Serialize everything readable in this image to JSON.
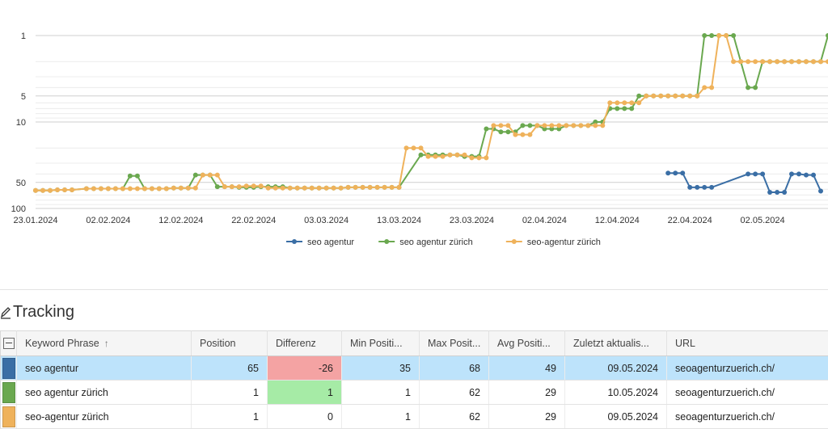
{
  "chart_data": {
    "type": "line",
    "y_axis": {
      "scale": "log",
      "reversed": true,
      "ticks": [
        1,
        5,
        10,
        50,
        100
      ],
      "range": [
        1,
        100
      ]
    },
    "x_axis": {
      "range": [
        "23.01.2024",
        "11.05.2024"
      ],
      "tick_labels": [
        "23.01.2024",
        "02.02.2024",
        "12.02.2024",
        "22.02.2024",
        "03.03.2024",
        "13.03.2024",
        "23.03.2024",
        "02.04.2024",
        "12.04.2024",
        "22.04.2024",
        "02.05.2024"
      ]
    },
    "grid": true,
    "legend_position": "bottom",
    "series": [
      {
        "name": "seo agentur",
        "color": "#3a6ea5",
        "points": [
          [
            "19.04.2024",
            39
          ],
          [
            "20.04.2024",
            39
          ],
          [
            "21.04.2024",
            39
          ],
          [
            "22.04.2024",
            57
          ],
          [
            "23.04.2024",
            57
          ],
          [
            "24.04.2024",
            57
          ],
          [
            "25.04.2024",
            57
          ],
          [
            "30.04.2024",
            40
          ],
          [
            "01.05.2024",
            40
          ],
          [
            "02.05.2024",
            40
          ],
          [
            "03.05.2024",
            65
          ],
          [
            "04.05.2024",
            65
          ],
          [
            "05.05.2024",
            65
          ],
          [
            "06.05.2024",
            40
          ],
          [
            "07.05.2024",
            40
          ],
          [
            "08.05.2024",
            41
          ],
          [
            "09.05.2024",
            41
          ],
          [
            "10.05.2024",
            63
          ]
        ]
      },
      {
        "name": "seo agentur zürich",
        "color": "#6aa84f",
        "points": [
          [
            "23.01.2024",
            62
          ],
          [
            "24.01.2024",
            62
          ],
          [
            "25.01.2024",
            62
          ],
          [
            "26.01.2024",
            61
          ],
          [
            "27.01.2024",
            61
          ],
          [
            "28.01.2024",
            61
          ],
          [
            "30.01.2024",
            59
          ],
          [
            "31.01.2024",
            59
          ],
          [
            "01.02.2024",
            59
          ],
          [
            "02.02.2024",
            59
          ],
          [
            "03.02.2024",
            59
          ],
          [
            "04.02.2024",
            59
          ],
          [
            "05.02.2024",
            42
          ],
          [
            "06.02.2024",
            42
          ],
          [
            "07.02.2024",
            59
          ],
          [
            "08.02.2024",
            59
          ],
          [
            "09.02.2024",
            59
          ],
          [
            "10.02.2024",
            59
          ],
          [
            "11.02.2024",
            58
          ],
          [
            "12.02.2024",
            58
          ],
          [
            "13.02.2024",
            58
          ],
          [
            "14.02.2024",
            41
          ],
          [
            "15.02.2024",
            41
          ],
          [
            "16.02.2024",
            41
          ],
          [
            "17.02.2024",
            56
          ],
          [
            "18.02.2024",
            56
          ],
          [
            "19.02.2024",
            56
          ],
          [
            "20.02.2024",
            57
          ],
          [
            "21.02.2024",
            57
          ],
          [
            "22.02.2024",
            57
          ],
          [
            "23.02.2024",
            56
          ],
          [
            "24.02.2024",
            56
          ],
          [
            "25.02.2024",
            56
          ],
          [
            "26.02.2024",
            56
          ],
          [
            "27.02.2024",
            58
          ],
          [
            "28.02.2024",
            58
          ],
          [
            "29.02.2024",
            58
          ],
          [
            "01.03.2024",
            58
          ],
          [
            "02.03.2024",
            58
          ],
          [
            "03.03.2024",
            58
          ],
          [
            "04.03.2024",
            58
          ],
          [
            "05.03.2024",
            58
          ],
          [
            "06.03.2024",
            57
          ],
          [
            "07.03.2024",
            57
          ],
          [
            "08.03.2024",
            57
          ],
          [
            "09.03.2024",
            57
          ],
          [
            "10.03.2024",
            57
          ],
          [
            "11.03.2024",
            57
          ],
          [
            "12.03.2024",
            57
          ],
          [
            "13.03.2024",
            57
          ],
          [
            "16.03.2024",
            24
          ],
          [
            "17.03.2024",
            24
          ],
          [
            "18.03.2024",
            24
          ],
          [
            "19.03.2024",
            24
          ],
          [
            "20.03.2024",
            24
          ],
          [
            "21.03.2024",
            24
          ],
          [
            "22.03.2024",
            25
          ],
          [
            "23.03.2024",
            25
          ],
          [
            "24.03.2024",
            25
          ],
          [
            "25.03.2024",
            12
          ],
          [
            "26.03.2024",
            12
          ],
          [
            "27.03.2024",
            13
          ],
          [
            "28.03.2024",
            13
          ],
          [
            "29.03.2024",
            13
          ],
          [
            "30.03.2024",
            11
          ],
          [
            "31.03.2024",
            11
          ],
          [
            "01.04.2024",
            11
          ],
          [
            "02.04.2024",
            12
          ],
          [
            "03.04.2024",
            12
          ],
          [
            "04.04.2024",
            12
          ],
          [
            "05.04.2024",
            11
          ],
          [
            "06.04.2024",
            11
          ],
          [
            "07.04.2024",
            11
          ],
          [
            "08.04.2024",
            11
          ],
          [
            "09.04.2024",
            10
          ],
          [
            "10.04.2024",
            10
          ],
          [
            "11.04.2024",
            7
          ],
          [
            "12.04.2024",
            7
          ],
          [
            "13.04.2024",
            7
          ],
          [
            "14.04.2024",
            7
          ],
          [
            "15.04.2024",
            5
          ],
          [
            "16.04.2024",
            5
          ],
          [
            "17.04.2024",
            5
          ],
          [
            "18.04.2024",
            5
          ],
          [
            "19.04.2024",
            5
          ],
          [
            "20.04.2024",
            5
          ],
          [
            "21.04.2024",
            5
          ],
          [
            "22.04.2024",
            5
          ],
          [
            "23.04.2024",
            5
          ],
          [
            "24.04.2024",
            1
          ],
          [
            "25.04.2024",
            1
          ],
          [
            "26.04.2024",
            1
          ],
          [
            "27.04.2024",
            1
          ],
          [
            "28.04.2024",
            1
          ],
          [
            "29.04.2024",
            2
          ],
          [
            "30.04.2024",
            4
          ],
          [
            "01.05.2024",
            4
          ],
          [
            "02.05.2024",
            2
          ],
          [
            "03.05.2024",
            2
          ],
          [
            "04.05.2024",
            2
          ],
          [
            "05.05.2024",
            2
          ],
          [
            "06.05.2024",
            2
          ],
          [
            "07.05.2024",
            2
          ],
          [
            "08.05.2024",
            2
          ],
          [
            "09.05.2024",
            2
          ],
          [
            "10.05.2024",
            2
          ],
          [
            "11.05.2024",
            1
          ]
        ]
      },
      {
        "name": "seo-agentur zürich",
        "color": "#efb25b",
        "points": [
          [
            "23.01.2024",
            62
          ],
          [
            "24.01.2024",
            62
          ],
          [
            "25.01.2024",
            62
          ],
          [
            "26.01.2024",
            61
          ],
          [
            "27.01.2024",
            61
          ],
          [
            "28.01.2024",
            61
          ],
          [
            "30.01.2024",
            59
          ],
          [
            "31.01.2024",
            59
          ],
          [
            "01.02.2024",
            59
          ],
          [
            "02.02.2024",
            59
          ],
          [
            "03.02.2024",
            59
          ],
          [
            "04.02.2024",
            59
          ],
          [
            "05.02.2024",
            59
          ],
          [
            "06.02.2024",
            59
          ],
          [
            "07.02.2024",
            59
          ],
          [
            "08.02.2024",
            59
          ],
          [
            "09.02.2024",
            59
          ],
          [
            "10.02.2024",
            59
          ],
          [
            "11.02.2024",
            58
          ],
          [
            "12.02.2024",
            58
          ],
          [
            "13.02.2024",
            58
          ],
          [
            "14.02.2024",
            58
          ],
          [
            "15.02.2024",
            41
          ],
          [
            "16.02.2024",
            41
          ],
          [
            "17.02.2024",
            41
          ],
          [
            "18.02.2024",
            56
          ],
          [
            "19.02.2024",
            56
          ],
          [
            "20.02.2024",
            56
          ],
          [
            "21.02.2024",
            55
          ],
          [
            "22.02.2024",
            55
          ],
          [
            "23.02.2024",
            55
          ],
          [
            "24.02.2024",
            58
          ],
          [
            "25.02.2024",
            58
          ],
          [
            "26.02.2024",
            58
          ],
          [
            "27.02.2024",
            58
          ],
          [
            "28.02.2024",
            58
          ],
          [
            "29.02.2024",
            58
          ],
          [
            "01.03.2024",
            58
          ],
          [
            "02.03.2024",
            58
          ],
          [
            "03.03.2024",
            58
          ],
          [
            "04.03.2024",
            58
          ],
          [
            "05.03.2024",
            58
          ],
          [
            "06.03.2024",
            57
          ],
          [
            "07.03.2024",
            57
          ],
          [
            "08.03.2024",
            57
          ],
          [
            "09.03.2024",
            57
          ],
          [
            "10.03.2024",
            57
          ],
          [
            "11.03.2024",
            57
          ],
          [
            "12.03.2024",
            57
          ],
          [
            "13.03.2024",
            57
          ],
          [
            "14.03.2024",
            20
          ],
          [
            "15.03.2024",
            20
          ],
          [
            "16.03.2024",
            20
          ],
          [
            "17.03.2024",
            25
          ],
          [
            "18.03.2024",
            25
          ],
          [
            "19.03.2024",
            25
          ],
          [
            "20.03.2024",
            24
          ],
          [
            "21.03.2024",
            24
          ],
          [
            "22.03.2024",
            24
          ],
          [
            "23.03.2024",
            26
          ],
          [
            "24.03.2024",
            26
          ],
          [
            "25.03.2024",
            26
          ],
          [
            "26.03.2024",
            11
          ],
          [
            "27.03.2024",
            11
          ],
          [
            "28.03.2024",
            11
          ],
          [
            "29.03.2024",
            14
          ],
          [
            "30.03.2024",
            14
          ],
          [
            "31.03.2024",
            14
          ],
          [
            "01.04.2024",
            11
          ],
          [
            "02.04.2024",
            11
          ],
          [
            "03.04.2024",
            11
          ],
          [
            "04.04.2024",
            11
          ],
          [
            "05.04.2024",
            11
          ],
          [
            "06.04.2024",
            11
          ],
          [
            "07.04.2024",
            11
          ],
          [
            "08.04.2024",
            11
          ],
          [
            "09.04.2024",
            11
          ],
          [
            "10.04.2024",
            11
          ],
          [
            "11.04.2024",
            6
          ],
          [
            "12.04.2024",
            6
          ],
          [
            "13.04.2024",
            6
          ],
          [
            "14.04.2024",
            6
          ],
          [
            "15.04.2024",
            6
          ],
          [
            "16.04.2024",
            5
          ],
          [
            "17.04.2024",
            5
          ],
          [
            "18.04.2024",
            5
          ],
          [
            "19.04.2024",
            5
          ],
          [
            "20.04.2024",
            5
          ],
          [
            "21.04.2024",
            5
          ],
          [
            "22.04.2024",
            5
          ],
          [
            "23.04.2024",
            5
          ],
          [
            "24.04.2024",
            4
          ],
          [
            "25.04.2024",
            4
          ],
          [
            "26.04.2024",
            1
          ],
          [
            "27.04.2024",
            1
          ],
          [
            "28.04.2024",
            2
          ],
          [
            "29.04.2024",
            2
          ],
          [
            "30.04.2024",
            2
          ],
          [
            "01.05.2024",
            2
          ],
          [
            "02.05.2024",
            2
          ],
          [
            "03.05.2024",
            2
          ],
          [
            "04.05.2024",
            2
          ],
          [
            "05.05.2024",
            2
          ],
          [
            "06.05.2024",
            2
          ],
          [
            "07.05.2024",
            2
          ],
          [
            "08.05.2024",
            2
          ],
          [
            "09.05.2024",
            2
          ],
          [
            "10.05.2024",
            2
          ],
          [
            "11.05.2024",
            2
          ],
          [
            "12.05.2024",
            2
          ],
          [
            "13.05.2024",
            2
          ],
          [
            "14.05.2024",
            2
          ],
          [
            "15.05.2024",
            1
          ],
          [
            "16.05.2024",
            1
          ],
          [
            "17.05.2024",
            1
          ]
        ]
      }
    ]
  },
  "tracking": {
    "title": "Tracking",
    "icon": "edit-pencil-icon",
    "columns": [
      "Keyword Phrase",
      "Position",
      "Differenz",
      "Min Positi...",
      "Max Posit...",
      "Avg Positi...",
      "Zuletzt aktualis...",
      "URL"
    ],
    "sort_indicator": "↑",
    "rows": [
      {
        "color": "#3a6ea5",
        "keyword": "seo agentur",
        "position": "65",
        "differenz": "-26",
        "min": "35",
        "max": "68",
        "avg": "49",
        "updated": "09.05.2024",
        "url": "seoagenturzuerich.ch/",
        "selected": true,
        "diff_state": "negative"
      },
      {
        "color": "#6aa84f",
        "keyword": "seo agentur zürich",
        "position": "1",
        "differenz": "1",
        "min": "1",
        "max": "62",
        "avg": "29",
        "updated": "10.05.2024",
        "url": "seoagenturzuerich.ch/",
        "selected": false,
        "diff_state": "positive"
      },
      {
        "color": "#efb25b",
        "keyword": "seo-agentur zürich",
        "position": "1",
        "differenz": "0",
        "min": "1",
        "max": "62",
        "avg": "29",
        "updated": "09.05.2024",
        "url": "seoagenturzuerich.ch/",
        "selected": false,
        "diff_state": "neutral"
      }
    ]
  }
}
